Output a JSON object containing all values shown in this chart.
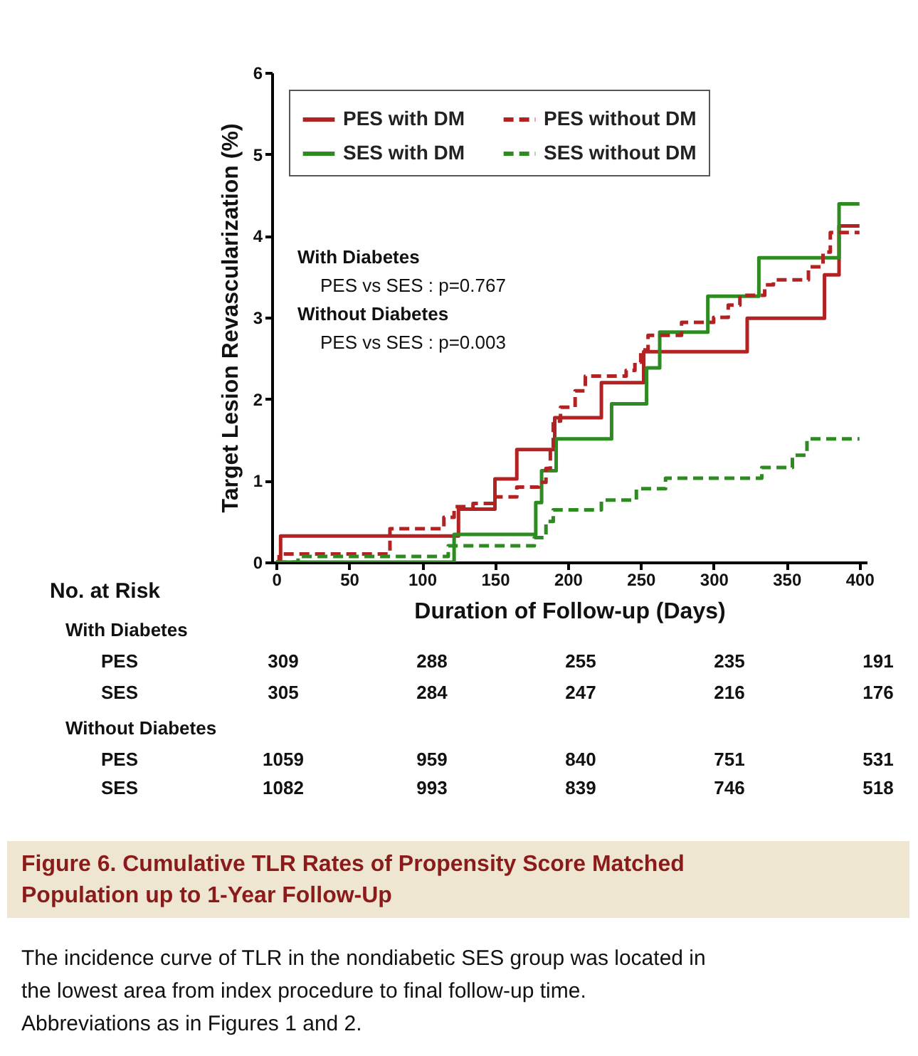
{
  "chart_data": {
    "type": "step",
    "title": "Figure 6. Cumulative TLR Rates of Propensity Score Matched Population up to 1-Year Follow-Up",
    "xlabel": "Duration of Follow-up (Days)",
    "ylabel": "Target Lesion Revascularization (%)",
    "xlim": [
      -3,
      405
    ],
    "xticks": [
      0,
      50,
      100,
      150,
      200,
      250,
      300,
      350,
      400
    ],
    "ylim": [
      0,
      6
    ],
    "yticks": [
      0,
      1,
      2,
      3,
      4,
      5,
      6
    ],
    "grid": false,
    "legend": "top left",
    "marker": "none",
    "series": [
      {
        "name": "PES with DM",
        "color": "#b22222",
        "line_style": "solid",
        "x": [
          0,
          3,
          125,
          150,
          165,
          191,
          223,
          252,
          323,
          376,
          386,
          400
        ],
        "values": [
          0,
          0.32,
          0.65,
          1.02,
          1.38,
          1.77,
          2.2,
          2.58,
          2.99,
          3.52,
          4.12,
          4.12
        ]
      },
      {
        "name": "SES with DM",
        "color": "#2e8b22",
        "line_style": "solid",
        "x": [
          0,
          122,
          178,
          182,
          192,
          230,
          254,
          263,
          296,
          331,
          386,
          400
        ],
        "values": [
          0,
          0.34,
          0.73,
          1.12,
          1.51,
          1.94,
          2.38,
          2.82,
          3.26,
          3.73,
          4.39,
          4.39
        ]
      },
      {
        "name": "PES without DM",
        "color": "#b22222",
        "line_style": "dashed",
        "x": [
          0,
          2,
          78,
          115,
          122,
          135,
          150,
          165,
          180,
          185,
          188,
          190,
          195,
          205,
          212,
          240,
          246,
          250,
          255,
          278,
          300,
          310,
          318,
          335,
          341,
          365,
          375,
          380,
          400
        ],
        "values": [
          0,
          0.1,
          0.41,
          0.55,
          0.68,
          0.72,
          0.8,
          0.92,
          0.98,
          1.15,
          1.4,
          1.73,
          1.9,
          2.1,
          2.28,
          2.35,
          2.45,
          2.6,
          2.78,
          2.94,
          3.0,
          3.15,
          3.27,
          3.4,
          3.46,
          3.62,
          3.8,
          4.04,
          4.04
        ]
      },
      {
        "name": "SES without DM",
        "color": "#2e8b22",
        "line_style": "dashed",
        "x": [
          0,
          15,
          118,
          177,
          185,
          190,
          223,
          247,
          267,
          333,
          354,
          364,
          400
        ],
        "values": [
          0,
          0.07,
          0.2,
          0.3,
          0.5,
          0.64,
          0.76,
          0.9,
          1.03,
          1.16,
          1.31,
          1.51,
          1.51
        ]
      }
    ],
    "annotations": [
      "With Diabetes",
      "PES vs SES : p=0.767",
      "Without Diabetes",
      "PES vs SES : p=0.003",
      "No. at Risk",
      "With Diabetes",
      "PES",
      "309",
      "288",
      "255",
      "235",
      "191",
      "SES",
      "305",
      "284",
      "247",
      "216",
      "176",
      "Without Diabetes",
      "PES",
      "1059",
      "959",
      "840",
      "751",
      "531",
      "SES",
      "1082",
      "993",
      "839",
      "746",
      "518",
      "The incidence curve of TLR in the nondiabetic SES group was located in the lowest area from index procedure to final follow-up time. Abbreviations as in Figures 1 and 2."
    ]
  }
}
